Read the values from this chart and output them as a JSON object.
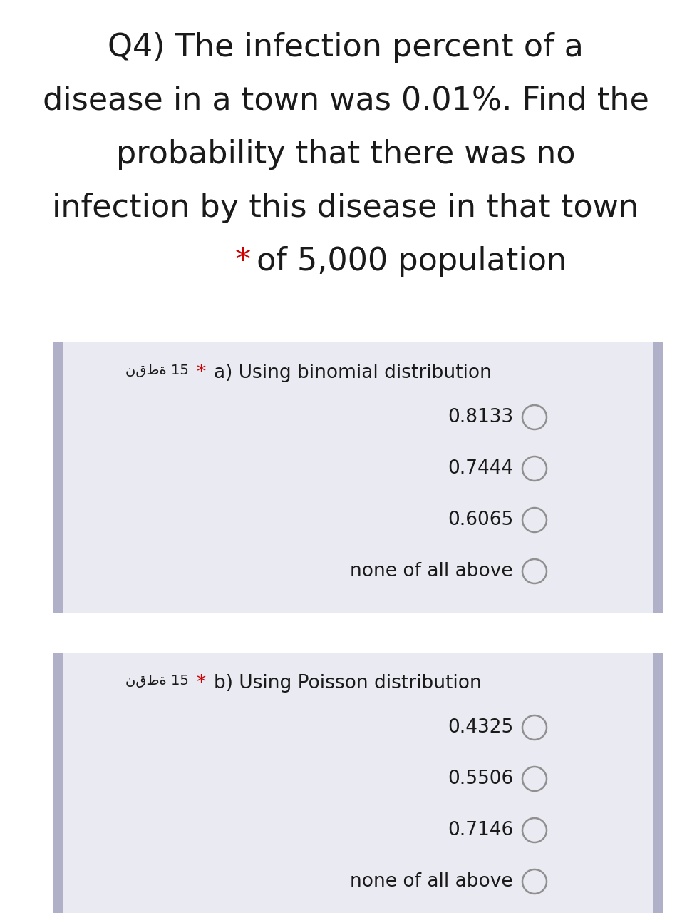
{
  "background_color": "#ffffff",
  "panel_bg": "#eaeaf2",
  "sidebar_color": "#b0b0c8",
  "title_lines": [
    "Q4) The infection percent of a",
    "disease in a town was 0.01%. Find the",
    "probability that there was no",
    "infection by this disease in that town"
  ],
  "title_last_line_main": "of 5,000 population",
  "title_fontsize": 32,
  "title_color": "#1a1a1a",
  "star_color": "#cc0000",
  "section_a_label": "نقطة 15",
  "section_a_title": "a) Using binomial distribution",
  "section_a_options": [
    "0.8133",
    "0.7444",
    "0.6065",
    "none of all above"
  ],
  "section_b_label": "نقطة 15",
  "section_b_title": "b) Using Poisson distribution",
  "section_b_options": [
    "0.4325",
    "0.5506",
    "0.7146",
    "none of all above"
  ],
  "label_fontsize": 14,
  "section_title_fontsize": 19,
  "option_fontsize": 19,
  "circle_color": "#909090",
  "circle_lw": 1.8
}
